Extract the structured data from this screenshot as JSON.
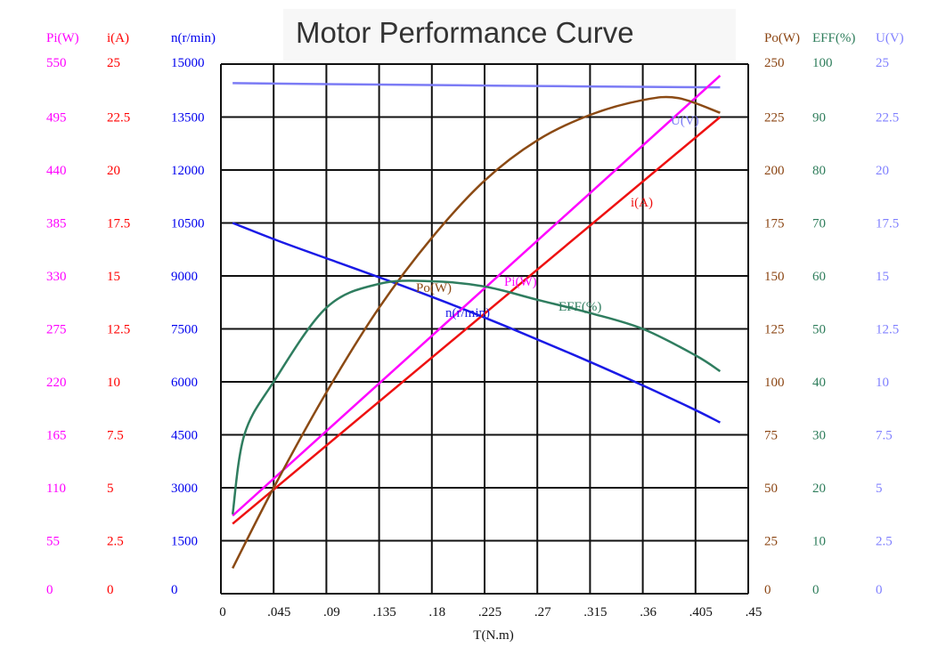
{
  "chart_data": {
    "type": "line",
    "title": "Motor Performance Curve",
    "xlabel": "T(N.m)",
    "xlim": [
      0,
      0.45
    ],
    "x_ticks": [
      "0",
      ".045",
      ".09",
      ".135",
      ".18",
      ".225",
      ".27",
      ".315",
      ".36",
      ".405",
      ".45"
    ],
    "grid": true,
    "axes": [
      {
        "key": "Pi",
        "label": "Pi(W)",
        "side": "left",
        "color": "#ff00ff",
        "range": [
          0,
          550
        ],
        "ticks": [
          "0",
          "55",
          "110",
          "165",
          "220",
          "275",
          "330",
          "385",
          "440",
          "495",
          "550"
        ]
      },
      {
        "key": "i",
        "label": "i(A)",
        "side": "left",
        "color": "#ff0000",
        "range": [
          0,
          25
        ],
        "ticks": [
          "0",
          "2.5",
          "5",
          "7.5",
          "10",
          "12.5",
          "15",
          "17.5",
          "20",
          "22.5",
          "25"
        ]
      },
      {
        "key": "n",
        "label": "n(r/min)",
        "side": "left",
        "color": "#0000ee",
        "range": [
          0,
          15000
        ],
        "ticks": [
          "0",
          "1500",
          "3000",
          "4500",
          "6000",
          "7500",
          "9000",
          "10500",
          "12000",
          "13500",
          "15000"
        ]
      },
      {
        "key": "Po",
        "label": "Po(W)",
        "side": "right",
        "color": "#8b4513",
        "range": [
          0,
          250
        ],
        "ticks": [
          "0",
          "25",
          "50",
          "75",
          "100",
          "125",
          "150",
          "175",
          "200",
          "225",
          "250"
        ]
      },
      {
        "key": "EFF",
        "label": "EFF(%)",
        "side": "right",
        "color": "#2e7d5b",
        "range": [
          0,
          100
        ],
        "ticks": [
          "0",
          "10",
          "20",
          "30",
          "40",
          "50",
          "60",
          "70",
          "80",
          "90",
          "100"
        ]
      },
      {
        "key": "U",
        "label": "U(V)",
        "side": "right",
        "color": "#8080ff",
        "range": [
          0,
          25
        ],
        "ticks": [
          "0",
          "2.5",
          "5",
          "7.5",
          "10",
          "12.5",
          "15",
          "17.5",
          "20",
          "22.5",
          "25"
        ]
      }
    ],
    "series": [
      {
        "name": "U(V)",
        "axis": "U",
        "color": "#7b7bf5",
        "label": "U(V)",
        "x": [
          0.01,
          0.1,
          0.2,
          0.3,
          0.426
        ],
        "y": [
          24.1,
          24.05,
          24.0,
          23.95,
          23.9
        ]
      },
      {
        "name": "n(r/min)",
        "axis": "n",
        "color": "#1a1ae6",
        "label": "n(r/min)",
        "x": [
          0.01,
          0.05,
          0.1,
          0.15,
          0.2,
          0.25,
          0.3,
          0.35,
          0.4,
          0.426
        ],
        "y": [
          10500,
          9980,
          9380,
          8780,
          8150,
          7480,
          6780,
          6050,
          5280,
          4850
        ]
      },
      {
        "name": "i(A)",
        "axis": "i",
        "color": "#ee1111",
        "label": "i(A)",
        "x": [
          0.01,
          0.426
        ],
        "y": [
          3.3,
          22.5
        ]
      },
      {
        "name": "Pi(W)",
        "axis": "Pi",
        "color": "#ff00ff",
        "label": "Pi(W)",
        "x": [
          0.01,
          0.426
        ],
        "y": [
          81,
          538
        ]
      },
      {
        "name": "Po(W)",
        "axis": "Po",
        "color": "#8b4a14",
        "label": "Po(W)",
        "x": [
          0.01,
          0.045,
          0.09,
          0.135,
          0.18,
          0.225,
          0.27,
          0.315,
          0.36,
          0.39,
          0.426
        ],
        "y": [
          12,
          50,
          95,
          135,
          168,
          195,
          214,
          226,
          233,
          234,
          227
        ]
      },
      {
        "name": "EFF(%)",
        "axis": "EFF",
        "color": "#2f7d5f",
        "label": "EFF(%)",
        "x": [
          0.01,
          0.02,
          0.045,
          0.09,
          0.135,
          0.18,
          0.225,
          0.27,
          0.315,
          0.36,
          0.405,
          0.426
        ],
        "y": [
          15,
          30,
          40,
          54,
          58.5,
          59,
          58,
          55.5,
          53,
          50,
          45,
          42
        ]
      }
    ]
  }
}
